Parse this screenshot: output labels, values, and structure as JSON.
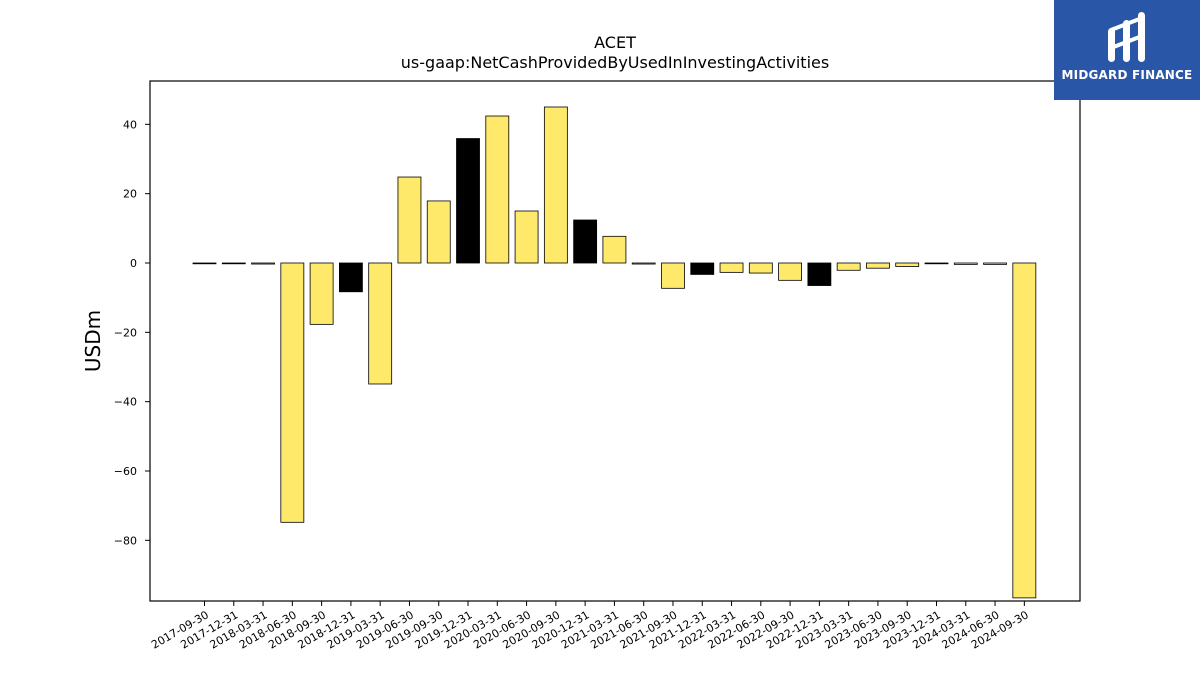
{
  "brand": {
    "name": "MIDGARD FINANCE",
    "color": "#2a56a8"
  },
  "chart_data": {
    "type": "bar",
    "title": "ACET",
    "subtitle": "us-gaap:NetCashProvidedByUsedInInvestingActivities",
    "xlabel": "",
    "ylabel": "USDm",
    "ylim": [
      -97.5,
      52.5
    ],
    "yticks": [
      -80,
      -60,
      -40,
      -20,
      0,
      20,
      40
    ],
    "grid": false,
    "colors": {
      "default": "#ffe96b",
      "highlight": "#000000",
      "edge": "#000000"
    },
    "categories": [
      "2017-09-30",
      "2017-12-31",
      "2018-03-31",
      "2018-06-30",
      "2018-09-30",
      "2018-12-31",
      "2019-03-31",
      "2019-06-30",
      "2019-09-30",
      "2019-12-31",
      "2020-03-31",
      "2020-06-30",
      "2020-09-30",
      "2020-12-31",
      "2021-03-31",
      "2021-06-30",
      "2021-09-30",
      "2021-12-31",
      "2022-03-31",
      "2022-06-30",
      "2022-09-30",
      "2022-12-31",
      "2023-03-31",
      "2023-06-30",
      "2023-09-30",
      "2023-12-31",
      "2024-03-31",
      "2024-06-30",
      "2024-09-30"
    ],
    "values": [
      -0.1,
      -0.1,
      -0.3,
      -74.8,
      -17.7,
      -8.3,
      -34.9,
      24.8,
      17.9,
      35.9,
      42.4,
      15.0,
      45.0,
      12.4,
      7.7,
      -0.3,
      -7.3,
      -3.3,
      -2.7,
      -2.9,
      -5.0,
      -6.5,
      -2.1,
      -1.5,
      -1.0,
      -0.2,
      -0.4,
      -0.4,
      -96.6
    ],
    "highlight": [
      false,
      false,
      false,
      false,
      false,
      true,
      false,
      false,
      false,
      true,
      false,
      false,
      false,
      true,
      false,
      false,
      false,
      true,
      false,
      false,
      false,
      true,
      false,
      false,
      false,
      false,
      false,
      false,
      false
    ]
  }
}
